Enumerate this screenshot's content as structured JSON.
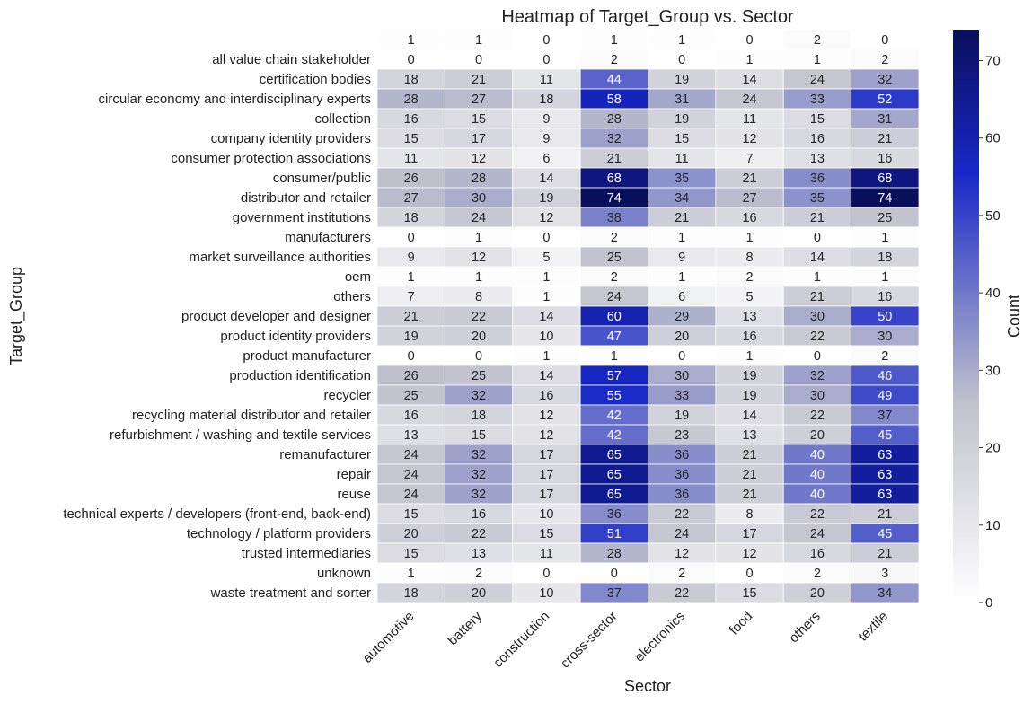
{
  "chart_data": {
    "type": "heatmap",
    "title": "Heatmap of Target_Group vs. Sector",
    "xlabel": "Sector",
    "ylabel": "Target_Group",
    "colorbar_label": "Count",
    "colorbar_ticks": [
      "0",
      "10",
      "20",
      "30",
      "40",
      "50",
      "60",
      "70"
    ],
    "vmin": 0,
    "vmax": 74,
    "colors": {
      "low": "#ffffff",
      "mid": "#c0c1cc",
      "high": "#0a0f5c"
    },
    "x_categories": [
      "automotive",
      "battery",
      "construction",
      "cross-sector",
      "electronics",
      "food",
      "others",
      "textile"
    ],
    "y_categories": [
      "",
      "all value chain stakeholder",
      "certification bodies",
      "circular economy and interdisciplinary experts",
      "collection",
      "company identity providers",
      "consumer protection associations",
      "consumer/public",
      "distributor and retailer",
      "government institutions",
      "manufacturers",
      "market surveillance authorities",
      "oem",
      "others",
      "product developer and designer",
      "product identity providers",
      "product manufacturer",
      "production identification",
      "recycler",
      "recycling material distributor and retailer",
      "refurbishment / washing and textile services",
      "remanufacturer",
      "repair",
      "reuse",
      "technical experts / developers (front-end, back-end)",
      "technology / platform providers",
      "trusted intermediaries",
      "unknown",
      "waste treatment and sorter"
    ],
    "values": [
      [
        1,
        1,
        0,
        1,
        1,
        0,
        2,
        0
      ],
      [
        0,
        0,
        0,
        2,
        0,
        1,
        1,
        2
      ],
      [
        18,
        21,
        11,
        44,
        19,
        14,
        24,
        32
      ],
      [
        28,
        27,
        18,
        58,
        31,
        24,
        33,
        52
      ],
      [
        16,
        15,
        9,
        28,
        19,
        11,
        15,
        31
      ],
      [
        15,
        17,
        9,
        32,
        15,
        12,
        16,
        21
      ],
      [
        11,
        12,
        6,
        21,
        11,
        7,
        13,
        16
      ],
      [
        26,
        28,
        14,
        68,
        35,
        21,
        36,
        68
      ],
      [
        27,
        30,
        19,
        74,
        34,
        27,
        35,
        74
      ],
      [
        18,
        24,
        12,
        38,
        21,
        16,
        21,
        25
      ],
      [
        0,
        1,
        0,
        2,
        1,
        1,
        0,
        1
      ],
      [
        9,
        12,
        5,
        25,
        9,
        8,
        14,
        18
      ],
      [
        1,
        1,
        1,
        2,
        1,
        2,
        1,
        1
      ],
      [
        7,
        8,
        1,
        24,
        6,
        5,
        21,
        16
      ],
      [
        21,
        22,
        14,
        60,
        29,
        13,
        30,
        50
      ],
      [
        19,
        20,
        10,
        47,
        20,
        16,
        22,
        30
      ],
      [
        0,
        0,
        1,
        1,
        0,
        1,
        0,
        2
      ],
      [
        26,
        25,
        14,
        57,
        30,
        19,
        32,
        46
      ],
      [
        25,
        32,
        16,
        55,
        33,
        19,
        30,
        49
      ],
      [
        16,
        18,
        12,
        42,
        19,
        14,
        22,
        37
      ],
      [
        13,
        15,
        12,
        42,
        23,
        13,
        20,
        45
      ],
      [
        24,
        32,
        17,
        65,
        36,
        21,
        40,
        63
      ],
      [
        24,
        32,
        17,
        65,
        36,
        21,
        40,
        63
      ],
      [
        24,
        32,
        17,
        65,
        36,
        21,
        40,
        63
      ],
      [
        15,
        16,
        10,
        36,
        22,
        8,
        22,
        21
      ],
      [
        20,
        22,
        15,
        51,
        24,
        17,
        24,
        45
      ],
      [
        15,
        13,
        11,
        28,
        12,
        12,
        16,
        21
      ],
      [
        1,
        2,
        0,
        0,
        2,
        0,
        2,
        3
      ],
      [
        18,
        20,
        10,
        37,
        22,
        15,
        20,
        34
      ]
    ]
  }
}
